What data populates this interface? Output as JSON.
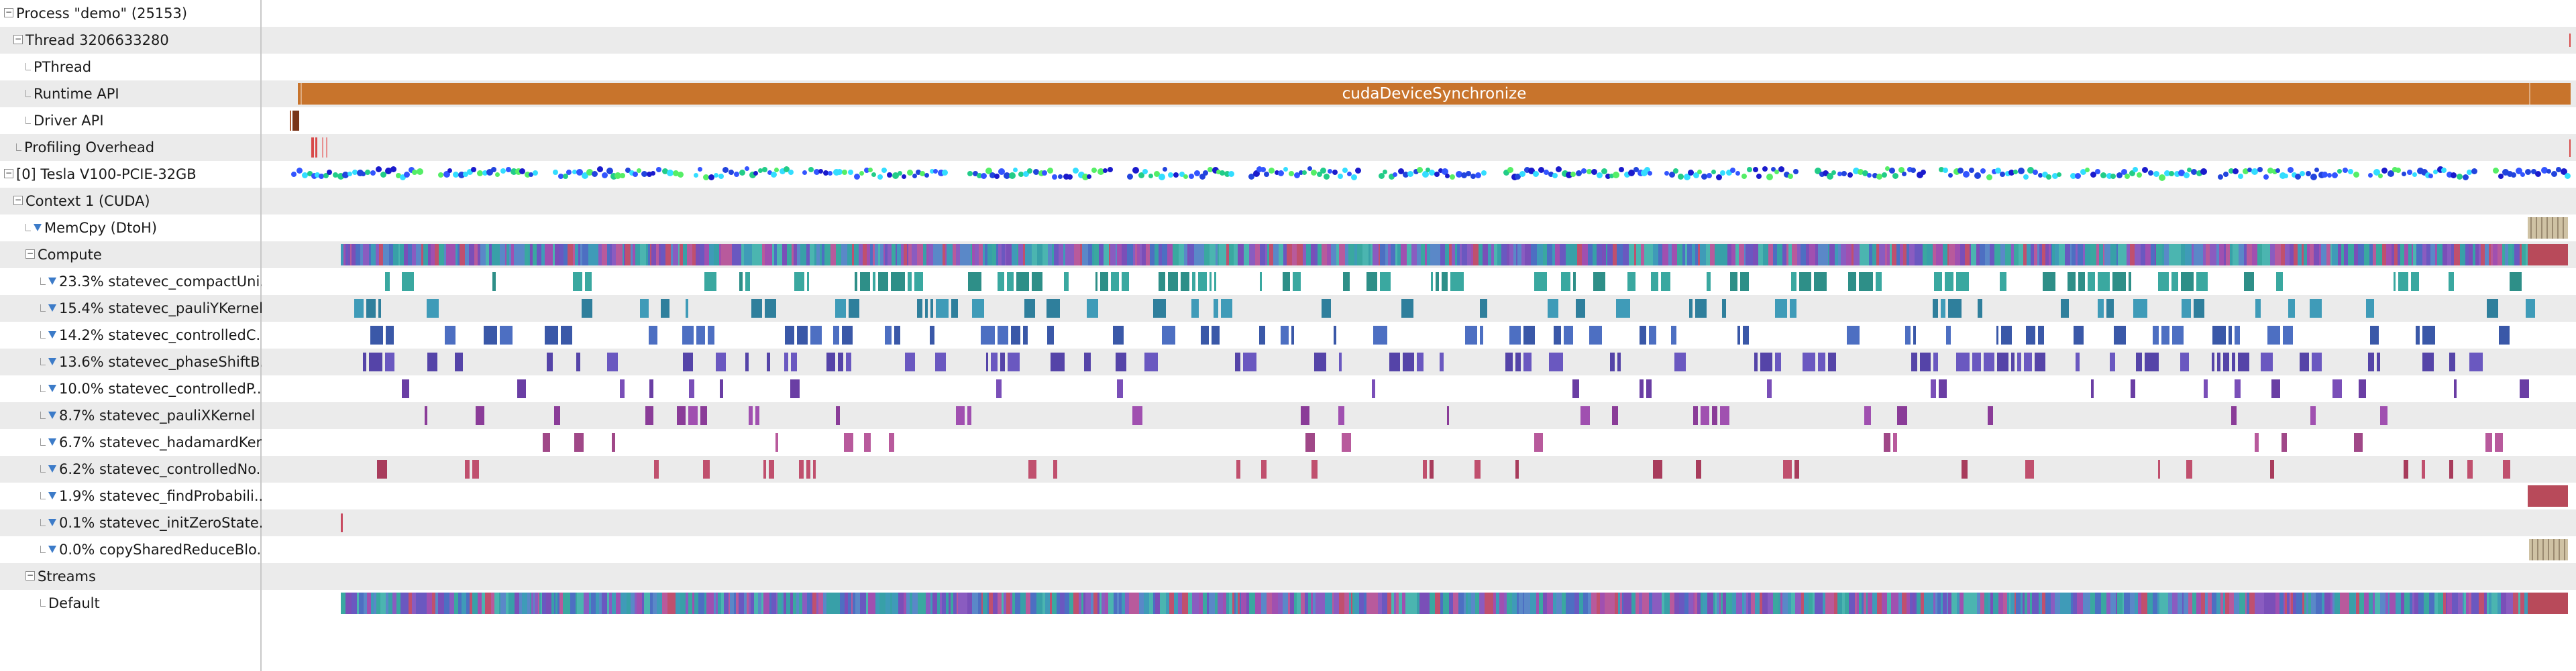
{
  "tree": {
    "process": "Process \"demo\" (25153)",
    "thread": "Thread 3206633280",
    "pthread": "PThread",
    "runtime_api": "Runtime API",
    "driver_api": "Driver API",
    "profiling_overhead": "Profiling Overhead",
    "gpu": "[0] Tesla V100-PCIE-32GB",
    "context": "Context 1 (CUDA)",
    "memcpy": "MemCpy (DtoH)",
    "compute": "Compute",
    "kernels": [
      "23.3% statevec_compactUni...",
      "15.4% statevec_pauliYKernel",
      "14.2% statevec_controlledC...",
      "13.6% statevec_phaseShiftB...",
      "10.0% statevec_controlledP...",
      "8.7% statevec_pauliXKernel",
      "6.7% statevec_hadamardKer...",
      "6.2% statevec_controlledNo...",
      "1.9% statevec_findProbabili...",
      "0.1% statevec_initZeroState...",
      "0.0% copySharedReduceBlo..."
    ],
    "streams": "Streams",
    "default_stream": "Default"
  },
  "timeline": {
    "runtime_call": "cudaDeviceSynchronize"
  },
  "colors": {
    "runtime_bar": "#c8742c",
    "driver_bar": "#7a3518",
    "overhead": "#d84a4a",
    "kernel_palette": [
      "#3aa8a0",
      "#3f9bb8",
      "#4d6fc2",
      "#6a58c0",
      "#7a4fb8",
      "#a050b0",
      "#b85a9c",
      "#c0506e",
      "#b84a5a",
      "#c84a60",
      "#b8a890"
    ],
    "filter_icon": "#3c7bc8"
  },
  "icons": {
    "expand": "minus-toggle-icon",
    "leaf": "tree-leaf-icon",
    "filter": "filter-funnel-icon"
  }
}
